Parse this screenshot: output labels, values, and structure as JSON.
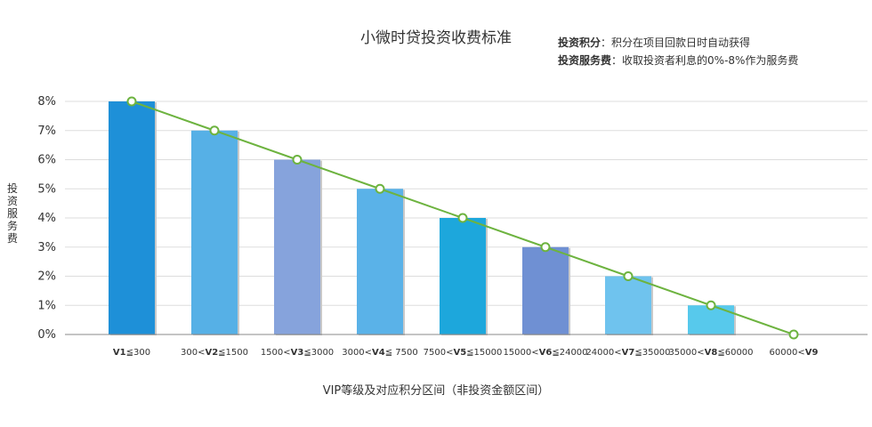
{
  "header": {
    "title": "小微时贷投资收费标准",
    "notes": [
      {
        "key": "投资积分",
        "sep": "：",
        "text": "积分在项目回款日时自动获得"
      },
      {
        "key": "投资服务费",
        "sep": "：",
        "text": "收取投资者利息的0%-8%作为服务费"
      }
    ]
  },
  "chart_data": {
    "type": "bar",
    "title": "小微时贷投资收费标准",
    "xlabel": "VIP等级及对应积分区间（非投资金额区间）",
    "ylabel": "投资服务费",
    "ylim": [
      0,
      8
    ],
    "yticks": [
      "0%",
      "1%",
      "2%",
      "3%",
      "4%",
      "5%",
      "6%",
      "7%",
      "8%"
    ],
    "grid": true,
    "categories": [
      {
        "pre": "",
        "bold": "V1",
        "post": "≦300"
      },
      {
        "pre": "300<",
        "bold": "V2",
        "post": "≦1500"
      },
      {
        "pre": "1500<",
        "bold": "V3",
        "post": "≦3000"
      },
      {
        "pre": "3000<",
        "bold": "V4",
        "post": "≦ 7500"
      },
      {
        "pre": "7500<",
        "bold": "V5",
        "post": "≦15000"
      },
      {
        "pre": "15000<",
        "bold": "V6",
        "post": "≦24000"
      },
      {
        "pre": "24000<",
        "bold": "V7",
        "post": "≦35000"
      },
      {
        "pre": "35000<",
        "bold": "V8",
        "post": "≦60000"
      },
      {
        "pre": "60000<",
        "bold": "V9",
        "post": ""
      }
    ],
    "bar_values": [
      8,
      7,
      6,
      5,
      4,
      3,
      2,
      1,
      null
    ],
    "line_values": [
      8,
      7,
      6,
      5,
      4,
      3,
      2,
      1,
      0
    ],
    "bar_colors": [
      "#1e90d8",
      "#56b0e6",
      "#86a3dc",
      "#5ab2e8",
      "#1da7dc",
      "#6f90d3",
      "#6fc3ee",
      "#57c9ec"
    ],
    "line_color": "#6db33f",
    "axis_color": "#888888",
    "grid_color": "#dddddd"
  }
}
